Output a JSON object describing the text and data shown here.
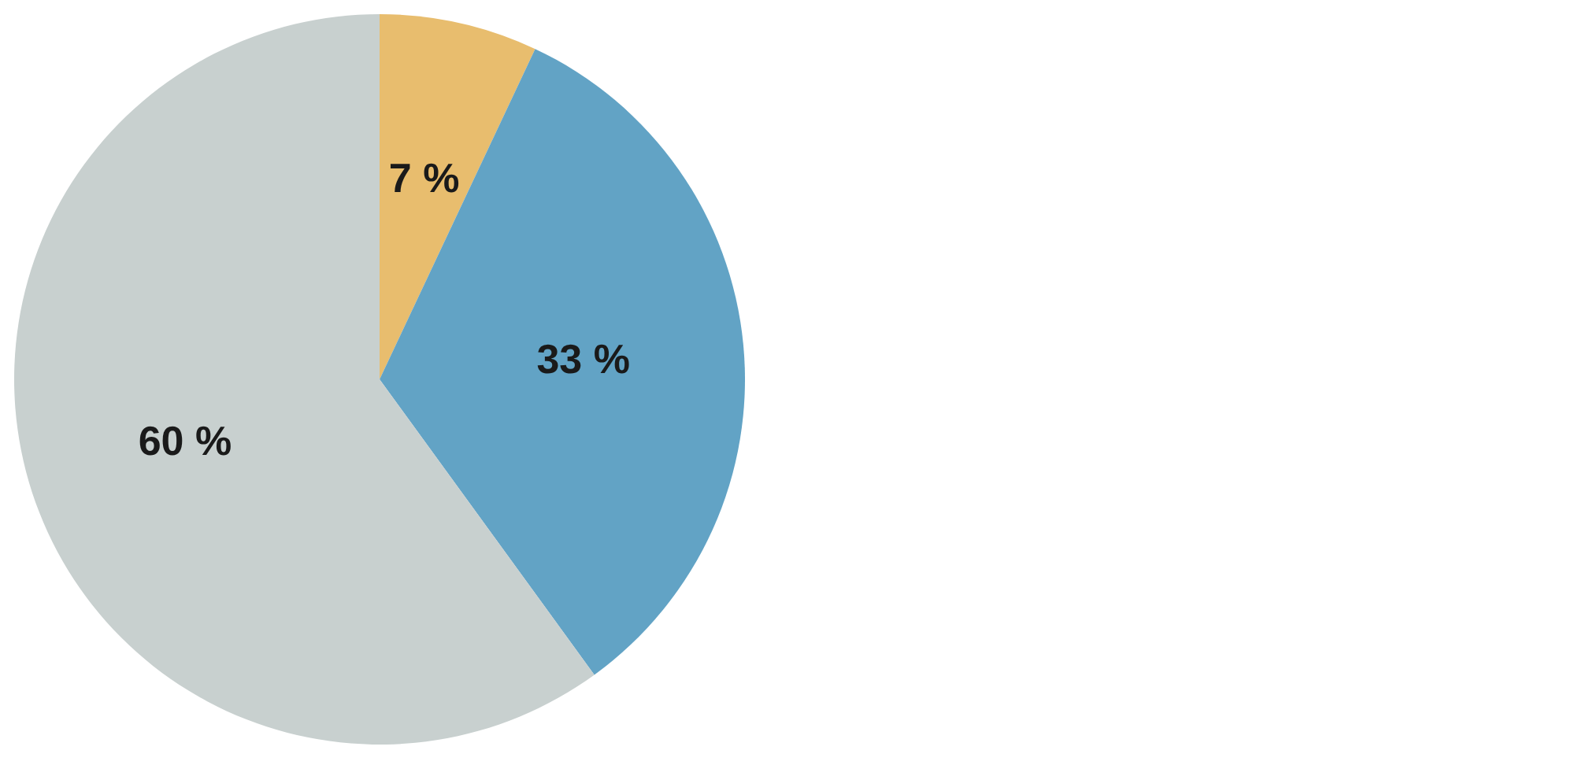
{
  "chart_data": {
    "type": "pie",
    "categories": [
      null,
      null,
      null
    ],
    "values": [
      7,
      33,
      60
    ],
    "colors": [
      "#e8bd6e",
      "#62a3c5",
      "#c8d0cf"
    ],
    "value_labels": [
      "7 %",
      "33 %",
      "60 %"
    ]
  }
}
